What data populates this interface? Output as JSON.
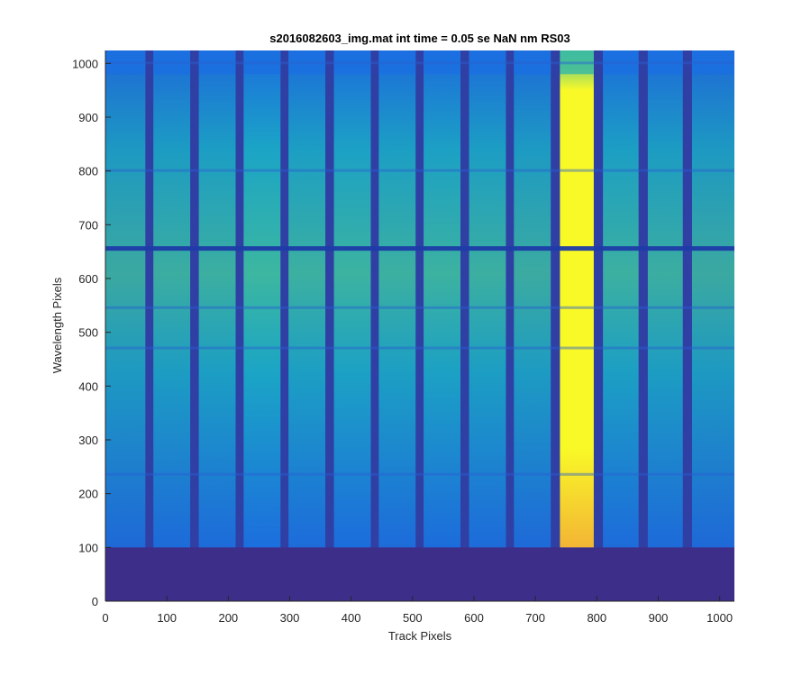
{
  "chart_data": {
    "type": "heatmap",
    "title": "s2016082603_img.mat int time = 0.05 se  NaN nm RS03",
    "xlabel": "Track Pixels",
    "ylabel": "Wavelength Pixels",
    "xlim": [
      0,
      1024
    ],
    "ylim": [
      0,
      1024
    ],
    "xticks": [
      0,
      100,
      200,
      300,
      400,
      500,
      600,
      700,
      800,
      900,
      1000
    ],
    "yticks": [
      0,
      100,
      200,
      300,
      400,
      500,
      600,
      700,
      800,
      900,
      1000
    ],
    "grid": false,
    "colormap": "parula",
    "colors": {
      "background_dark": "#3d2e8a",
      "gap": "#2f3fa4",
      "blue": "#1b70e0",
      "cyan": "#1aa8c7",
      "green_cyan": "#3dbba0",
      "yellow": "#f9f927",
      "orange": "#f3b535"
    },
    "tracks": [
      {
        "x_start": 0,
        "x_end": 65,
        "level": 0.38
      },
      {
        "x_start": 78,
        "x_end": 138,
        "level": 0.42
      },
      {
        "x_start": 152,
        "x_end": 212,
        "level": 0.44
      },
      {
        "x_start": 225,
        "x_end": 285,
        "level": 0.52
      },
      {
        "x_start": 298,
        "x_end": 358,
        "level": 0.45
      },
      {
        "x_start": 372,
        "x_end": 432,
        "level": 0.48
      },
      {
        "x_start": 445,
        "x_end": 505,
        "level": 0.45
      },
      {
        "x_start": 518,
        "x_end": 578,
        "level": 0.47
      },
      {
        "x_start": 592,
        "x_end": 652,
        "level": 0.44
      },
      {
        "x_start": 665,
        "x_end": 725,
        "level": 0.4
      },
      {
        "x_start": 740,
        "x_end": 795,
        "level": 1.0
      },
      {
        "x_start": 810,
        "x_end": 868,
        "level": 0.45
      },
      {
        "x_start": 883,
        "x_end": 940,
        "level": 0.42
      },
      {
        "x_start": 955,
        "x_end": 1024,
        "level": 0.38
      }
    ],
    "signal_start_row": 100,
    "dark_bands": [
      655,
      800,
      545,
      470,
      235,
      1000
    ],
    "strong_band": 655
  }
}
